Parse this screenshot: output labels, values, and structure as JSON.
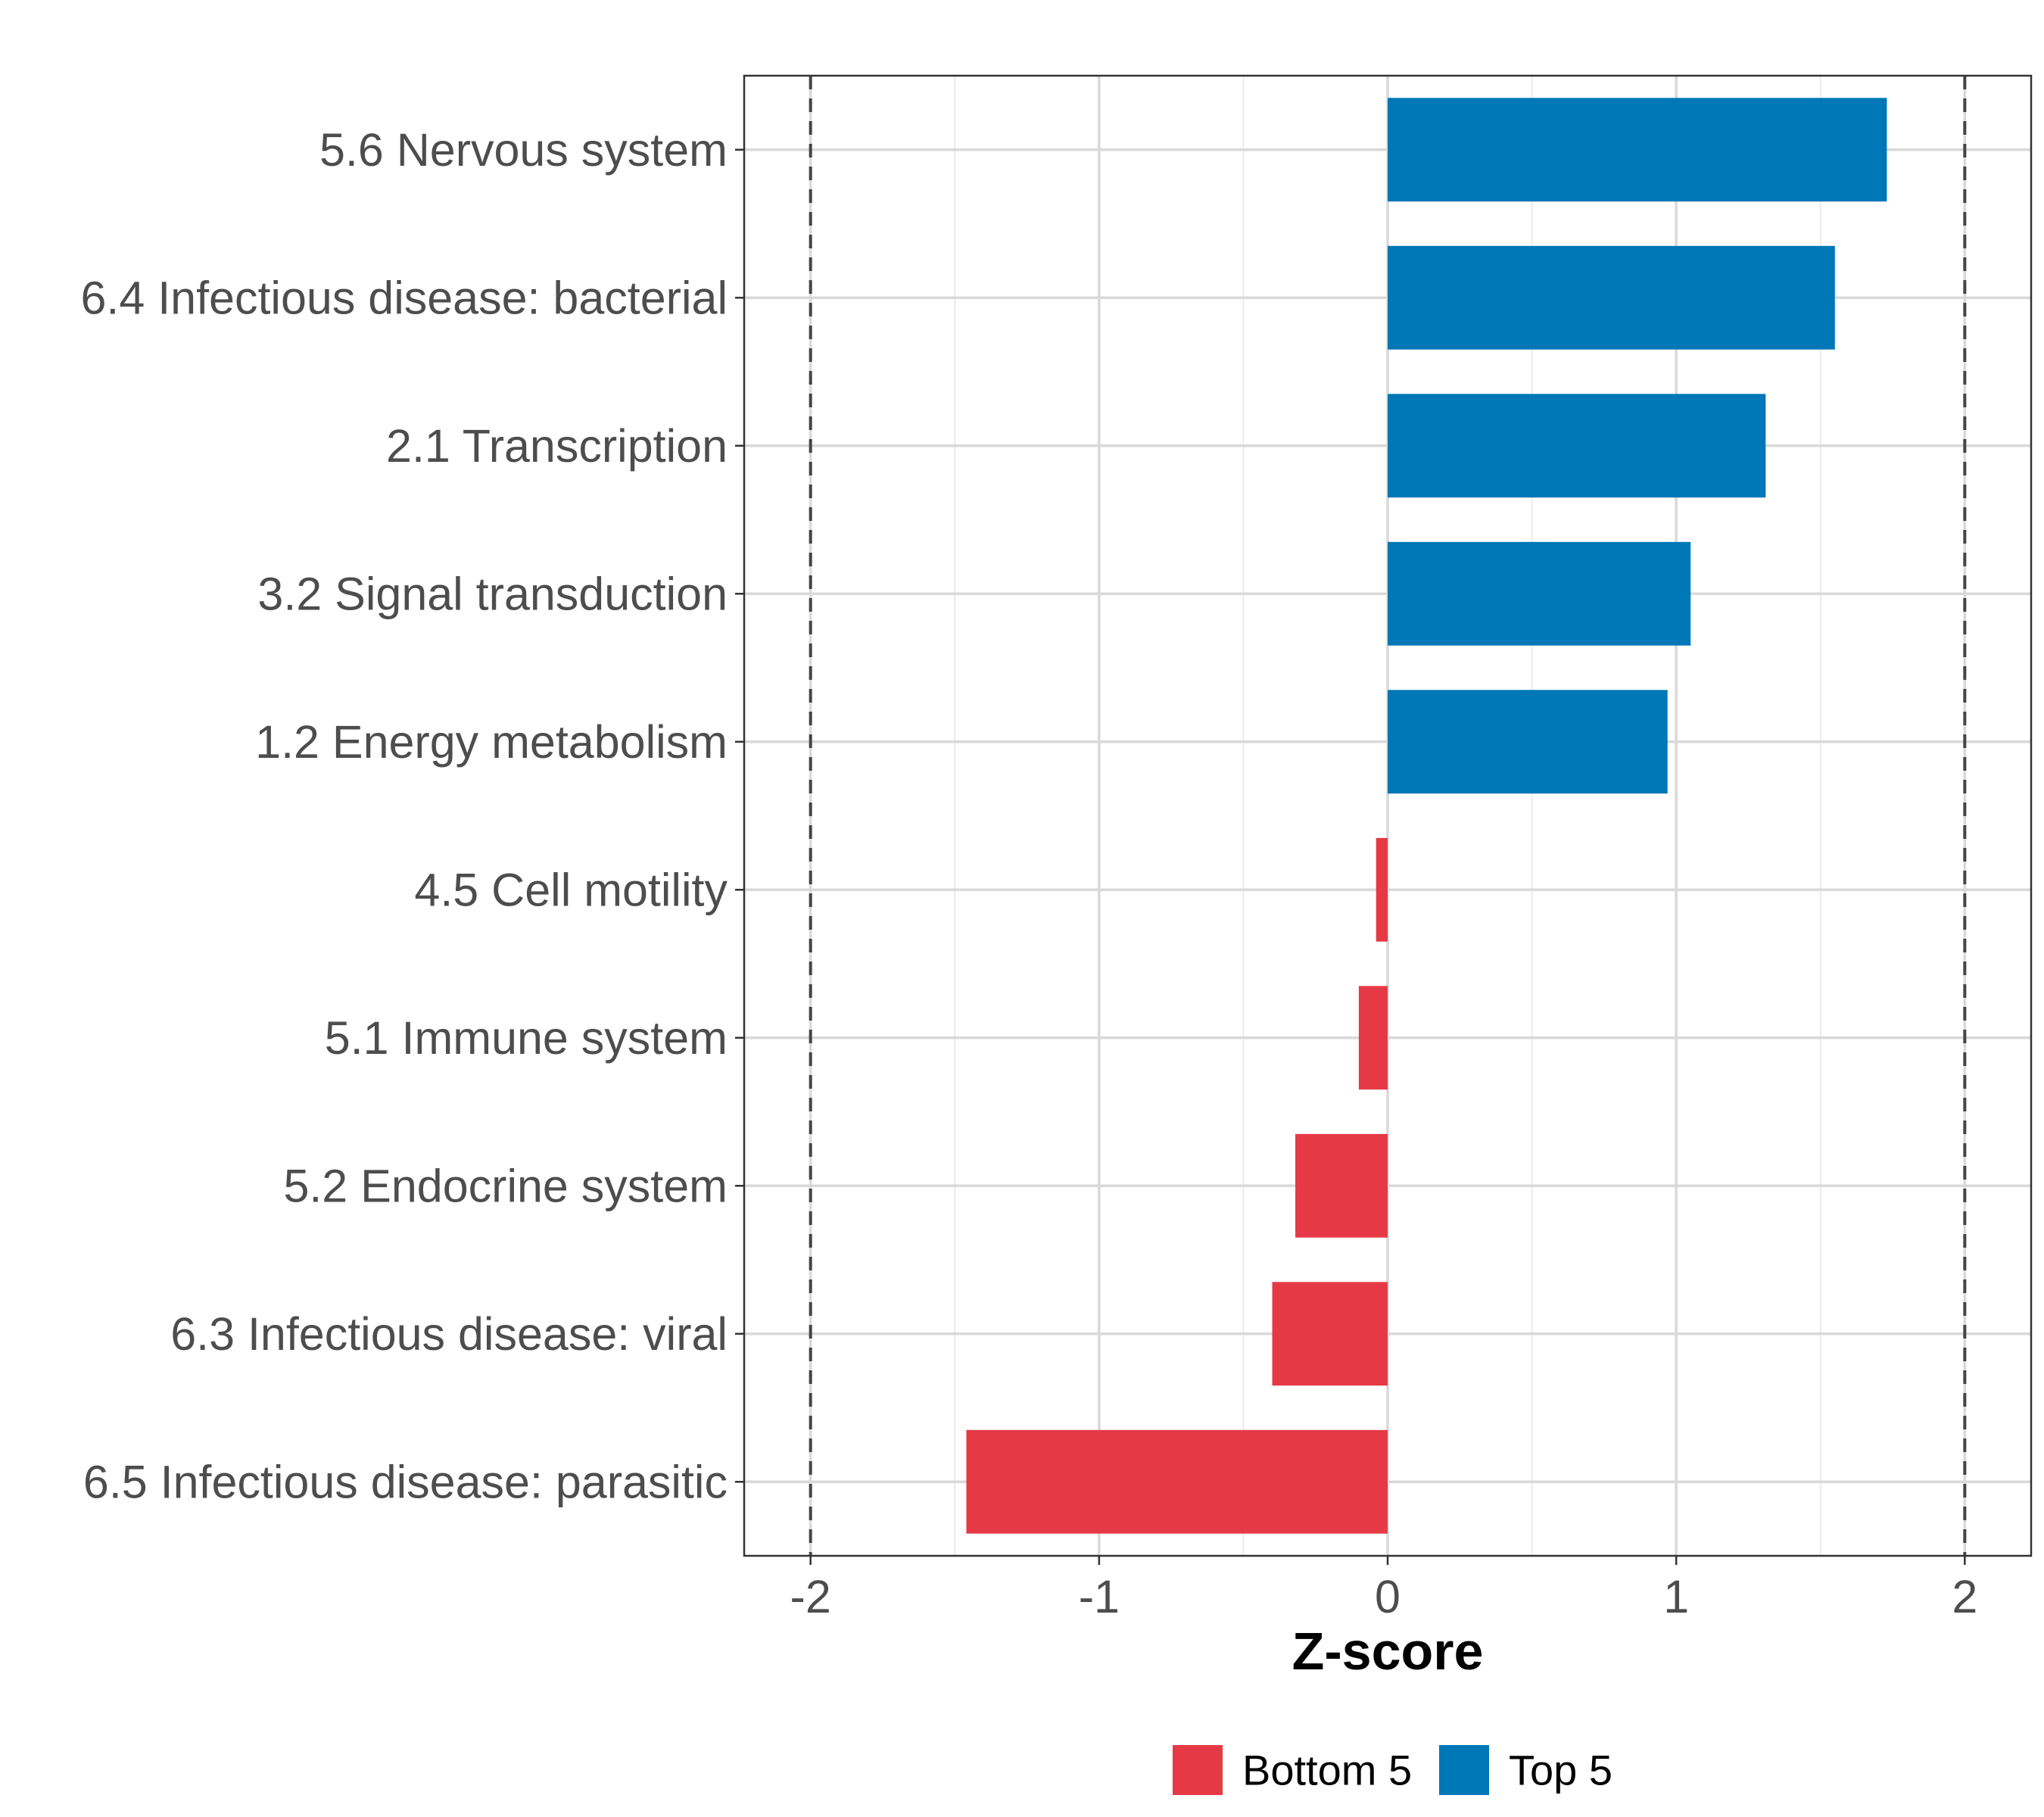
{
  "chart_data": {
    "type": "bar",
    "orientation": "horizontal",
    "categories": [
      "5.6 Nervous system",
      "6.4 Infectious disease: bacterial",
      "2.1 Transcription",
      "3.2 Signal transduction",
      "1.2 Energy metabolism",
      "4.5 Cell motility",
      "5.1 Immune system",
      "5.2 Endocrine system",
      "6.3 Infectious disease: viral",
      "6.5 Infectious disease: parasitic"
    ],
    "values": [
      1.73,
      1.55,
      1.31,
      1.05,
      0.97,
      -0.04,
      -0.1,
      -0.32,
      -0.4,
      -1.46
    ],
    "groups": [
      "Top 5",
      "Top 5",
      "Top 5",
      "Top 5",
      "Top 5",
      "Bottom 5",
      "Bottom 5",
      "Bottom 5",
      "Bottom 5",
      "Bottom 5"
    ],
    "xlabel": "Z-score",
    "ylabel": "",
    "xlim": [
      -2.23,
      2.23
    ],
    "xticks": [
      -2,
      -1,
      0,
      1,
      2
    ],
    "xtick_labels": [
      "-2",
      "-1",
      "0",
      "1",
      "2"
    ],
    "reference_lines": [
      -2,
      2
    ],
    "grid": true,
    "legend": {
      "position": "bottom",
      "entries": [
        {
          "label": "Bottom 5",
          "color": "#e63946"
        },
        {
          "label": "Top 5",
          "color": "#0077b6"
        }
      ]
    },
    "colors": {
      "Top 5": "#0077b6",
      "Bottom 5": "#e63946"
    }
  }
}
